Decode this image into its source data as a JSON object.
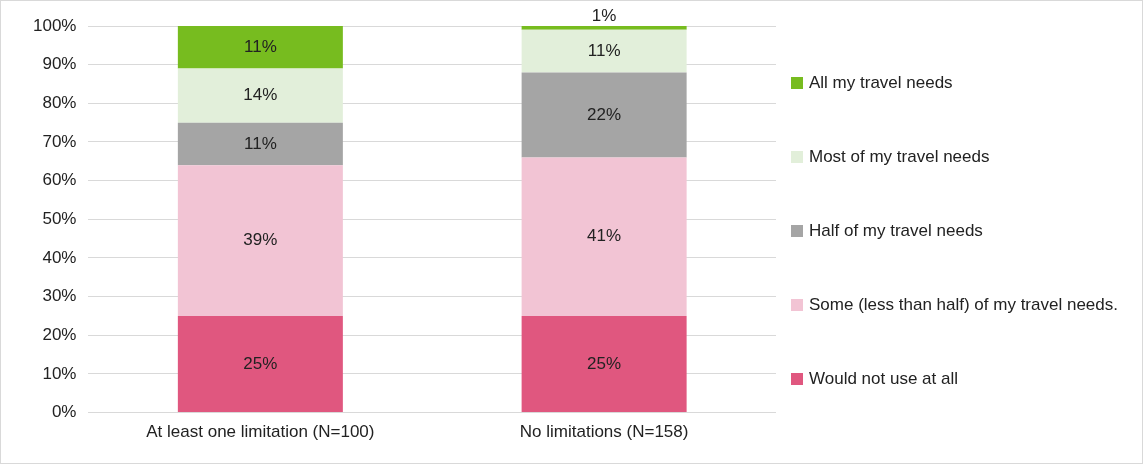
{
  "chart_data": {
    "type": "bar",
    "stacked": true,
    "categories": [
      "At least one limitation (N=100)",
      "No limitations (N=158)"
    ],
    "series": [
      {
        "name": "Would not use at all",
        "color": "#e0577f",
        "values": [
          25,
          25
        ],
        "value_labels": [
          "25%",
          "25%"
        ]
      },
      {
        "name": "Some (less than half) of my travel needs.",
        "color": "#f2c4d4",
        "values": [
          39,
          41
        ],
        "value_labels": [
          "39%",
          "41%"
        ]
      },
      {
        "name": "Half of my travel needs",
        "color": "#a5a5a5",
        "values": [
          11,
          22
        ],
        "value_labels": [
          "11%",
          "22%"
        ]
      },
      {
        "name": "Most of my travel needs",
        "color": "#e2efda",
        "values": [
          14,
          11
        ],
        "value_labels": [
          "14%",
          "11%"
        ]
      },
      {
        "name": "All my travel needs",
        "color": "#77bc1f",
        "values": [
          11,
          1
        ],
        "value_labels": [
          "11%",
          "1%"
        ]
      }
    ],
    "ylim": [
      0,
      100
    ],
    "yticks": [
      {
        "value": 0,
        "label": "0%"
      },
      {
        "value": 10,
        "label": "10%"
      },
      {
        "value": 20,
        "label": "20%"
      },
      {
        "value": 30,
        "label": "30%"
      },
      {
        "value": 40,
        "label": "40%"
      },
      {
        "value": 50,
        "label": "50%"
      },
      {
        "value": 60,
        "label": "60%"
      },
      {
        "value": 70,
        "label": "70%"
      },
      {
        "value": 80,
        "label": "80%"
      },
      {
        "value": 90,
        "label": "90%"
      },
      {
        "value": 100,
        "label": "100%"
      }
    ],
    "grid": "y",
    "legend": "right"
  }
}
